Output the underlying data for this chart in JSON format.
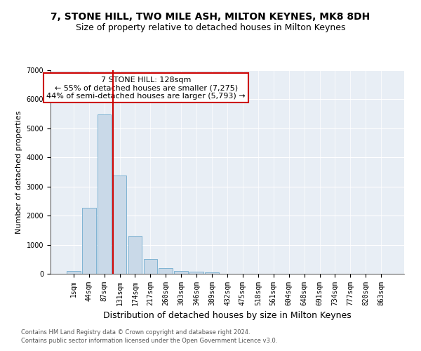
{
  "title": "7, STONE HILL, TWO MILE ASH, MILTON KEYNES, MK8 8DH",
  "subtitle": "Size of property relative to detached houses in Milton Keynes",
  "xlabel": "Distribution of detached houses by size in Milton Keynes",
  "ylabel": "Number of detached properties",
  "footnote1": "Contains HM Land Registry data © Crown copyright and database right 2024.",
  "footnote2": "Contains public sector information licensed under the Open Government Licence v3.0.",
  "bar_labels": [
    "1sqm",
    "44sqm",
    "87sqm",
    "131sqm",
    "174sqm",
    "217sqm",
    "260sqm",
    "303sqm",
    "346sqm",
    "389sqm",
    "432sqm",
    "475sqm",
    "518sqm",
    "561sqm",
    "604sqm",
    "648sqm",
    "691sqm",
    "734sqm",
    "777sqm",
    "820sqm",
    "863sqm"
  ],
  "bar_values": [
    100,
    2280,
    5480,
    3380,
    1310,
    500,
    185,
    95,
    65,
    55,
    0,
    0,
    0,
    0,
    0,
    0,
    0,
    0,
    0,
    0,
    0
  ],
  "bar_color": "#c9d9e8",
  "bar_edgecolor": "#7fb3d3",
  "vline_x": 2.58,
  "vline_color": "#cc0000",
  "annotation_text": "7 STONE HILL: 128sqm\n← 55% of detached houses are smaller (7,275)\n44% of semi-detached houses are larger (5,793) →",
  "annotation_box_color": "#ffffff",
  "annotation_box_edgecolor": "#cc0000",
  "ylim": [
    0,
    7000
  ],
  "yticks": [
    0,
    1000,
    2000,
    3000,
    4000,
    5000,
    6000,
    7000
  ],
  "plot_background": "#e8eef5",
  "title_fontsize": 10,
  "subtitle_fontsize": 9,
  "xlabel_fontsize": 9,
  "ylabel_fontsize": 8,
  "tick_fontsize": 7,
  "annot_fontsize": 8
}
